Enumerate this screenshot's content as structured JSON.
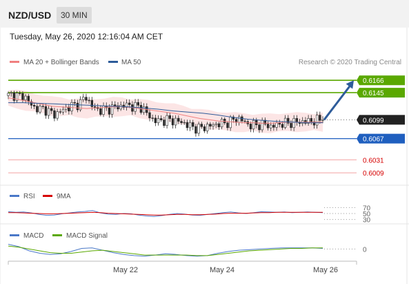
{
  "header": {
    "pair": "NZD/USD",
    "timeframe": "30 MIN"
  },
  "timestamp": "Tuesday, May 26, 2020 12:16:04 AM CET",
  "legend": {
    "ma20": "MA 20 + Bollinger Bands",
    "ma50": "MA 50",
    "credit": "Research © 2020 Trading Central"
  },
  "colors": {
    "resistance": "#5aa800",
    "support": "#d60000",
    "pivot": "#1f5fbf",
    "ma20": "#f08080",
    "ma50": "#2e5c9a",
    "rsi": "#4a78c8",
    "nine_ma": "#d60000",
    "macd": "#4a78c8",
    "macd_signal": "#5aa800",
    "current": "#222222"
  },
  "chart_data": {
    "type": "candlestick",
    "instrument": "NZD/USD",
    "interval": "30 MIN",
    "ylim": [
      0.5995,
      0.6185
    ],
    "x_ticks": [
      "May 22",
      "May 24",
      "May 26"
    ],
    "levels": [
      {
        "value": 0.6166,
        "label": "0.6166",
        "kind": "resistance"
      },
      {
        "value": 0.6145,
        "label": "0.6145",
        "kind": "resistance"
      },
      {
        "value": 0.6099,
        "label": "0.6099",
        "kind": "current"
      },
      {
        "value": 0.6067,
        "label": "0.6067",
        "kind": "pivot"
      },
      {
        "value": 0.6031,
        "label": "0.6031",
        "kind": "support"
      },
      {
        "value": 0.6009,
        "label": "0.6009",
        "kind": "support"
      }
    ],
    "price_path": [
      0.614,
      0.6142,
      0.6138,
      0.6141,
      0.6128,
      0.612,
      0.6117,
      0.6118,
      0.6112,
      0.6108,
      0.6112,
      0.6118,
      0.6122,
      0.6124,
      0.6128,
      0.6139,
      0.6125,
      0.6116,
      0.6116,
      0.6116,
      0.6119,
      0.6121,
      0.6122,
      0.6124,
      0.6122,
      0.6121,
      0.612,
      0.6108,
      0.61,
      0.6096,
      0.6098,
      0.6099,
      0.6098,
      0.6096,
      0.6094,
      0.6089,
      0.6086,
      0.6084,
      0.6087,
      0.6088,
      0.6091,
      0.6093,
      0.6093,
      0.6096,
      0.61,
      0.6101,
      0.6093,
      0.609,
      0.609,
      0.6091,
      0.6091,
      0.6087,
      0.609,
      0.6093,
      0.6093,
      0.6094,
      0.6095,
      0.6096,
      0.6096,
      0.6097,
      0.6098,
      0.6099
    ],
    "ma20": [
      0.6136,
      0.6134,
      0.6131,
      0.6128,
      0.6125,
      0.6122,
      0.6121,
      0.612,
      0.6119,
      0.6118,
      0.6119,
      0.612,
      0.6121,
      0.6121,
      0.612,
      0.6118,
      0.6116,
      0.6114,
      0.6112,
      0.611,
      0.6107,
      0.6104,
      0.6101,
      0.6099,
      0.6097,
      0.6096,
      0.6095,
      0.6094,
      0.6094,
      0.6093,
      0.6093,
      0.6094,
      0.6095,
      0.6095,
      0.6095,
      0.6095,
      0.6095
    ],
    "ma50": [
      0.6128,
      0.6128,
      0.6127,
      0.6126,
      0.6125,
      0.6124,
      0.6123,
      0.6122,
      0.6121,
      0.6119,
      0.6117,
      0.6114,
      0.6112,
      0.611,
      0.6107,
      0.6103,
      0.61,
      0.6098,
      0.6096,
      0.6095,
      0.6094,
      0.6094
    ],
    "forecast": {
      "from": 0.6099,
      "to": 0.6166
    },
    "rsi": {
      "levels": [
        {
          "value": 70,
          "label": "70"
        },
        {
          "value": 50,
          "label": "50"
        },
        {
          "value": 30,
          "label": "30"
        }
      ],
      "legend": [
        "RSI",
        "9MA"
      ],
      "ylim": [
        20,
        80
      ],
      "rsi_values": [
        56,
        54,
        55,
        52,
        47,
        44,
        45,
        49,
        52,
        55,
        57,
        60,
        52,
        48,
        47,
        50,
        49,
        45,
        42,
        40,
        43,
        47,
        50,
        48,
        45,
        44,
        47,
        50,
        53,
        55,
        52,
        50,
        53,
        56,
        55,
        54,
        55,
        53,
        54,
        55,
        54,
        53
      ],
      "nine_ma_values": [
        53,
        53,
        52,
        51,
        50,
        49,
        49,
        50,
        51,
        52,
        53,
        54,
        53,
        51,
        50,
        49,
        48,
        47,
        46,
        45,
        45,
        46,
        47,
        47,
        46,
        46,
        47,
        48,
        50,
        51,
        51,
        51,
        52,
        53,
        53,
        54,
        54,
        54,
        54,
        54,
        54,
        54
      ]
    },
    "macd": {
      "levels": [
        {
          "value": 0,
          "label": "0"
        }
      ],
      "legend": [
        "MACD",
        "MACD Signal"
      ],
      "ylim": [
        -0.0018,
        0.0012
      ],
      "macd_values": [
        0.0008,
        0.0004,
        -0.0003,
        -0.0007,
        -0.0009,
        -0.0008,
        -0.0004,
        0.0001,
        0.0002,
        -0.0002,
        -0.0006,
        -0.0009,
        -0.0011,
        -0.0012,
        -0.001,
        -0.0008,
        -0.0009,
        -0.0011,
        -0.0012,
        -0.0011,
        -0.0007,
        -0.0004,
        -0.0002,
        -0.0001,
        0.0,
        0.0001,
        0.0002,
        0.0002,
        0.0002,
        0.0002,
        0.0001
      ],
      "signal_values": [
        0.0005,
        0.0003,
        0.0,
        -0.0003,
        -0.0006,
        -0.0007,
        -0.0007,
        -0.0005,
        -0.0003,
        -0.0002,
        -0.0004,
        -0.0006,
        -0.0008,
        -0.001,
        -0.001,
        -0.001,
        -0.001,
        -0.001,
        -0.0011,
        -0.0011,
        -0.0009,
        -0.0007,
        -0.0005,
        -0.0003,
        -0.0002,
        -0.0001,
        0.0,
        0.0001,
        0.0001,
        0.0002,
        0.0002
      ]
    }
  }
}
